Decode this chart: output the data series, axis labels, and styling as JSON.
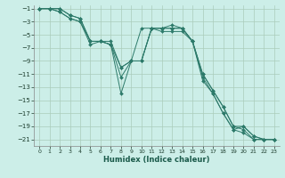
{
  "title": "",
  "xlabel": "Humidex (Indice chaleur)",
  "background_color": "#cceee8",
  "grid_color": "#aaccbb",
  "line_color": "#2d7a6a",
  "marker_color": "#2d7a6a",
  "xlim": [
    -0.5,
    23.5
  ],
  "ylim": [
    -22,
    -0.5
  ],
  "yticks": [
    -1,
    -3,
    -5,
    -7,
    -9,
    -11,
    -13,
    -15,
    -17,
    -19,
    -21
  ],
  "xticks": [
    0,
    1,
    2,
    3,
    4,
    5,
    6,
    7,
    8,
    9,
    10,
    11,
    12,
    13,
    14,
    15,
    16,
    17,
    18,
    19,
    20,
    21,
    22,
    23
  ],
  "series_x": [
    0,
    1,
    2,
    3,
    4,
    5,
    6,
    7,
    8,
    9,
    10,
    11,
    12,
    13,
    14,
    15,
    16,
    17,
    18,
    19,
    20,
    21,
    22,
    23
  ],
  "series": [
    [
      -1,
      -1,
      -1,
      -2,
      -2.5,
      -6,
      -6,
      -6.5,
      -14,
      -9,
      -4,
      -4,
      -4,
      -3.5,
      -4,
      -6,
      -12,
      -14,
      -17,
      -19.5,
      -20,
      -21,
      -21,
      -21
    ],
    [
      -1,
      -1,
      -1.5,
      -2.5,
      -3,
      -6.5,
      -6,
      -6.5,
      -11.5,
      -9,
      -9,
      -4,
      -4.5,
      -4.5,
      -4.5,
      -6,
      -11.5,
      -14,
      -17,
      -19.5,
      -19,
      -20.5,
      -21,
      -21
    ],
    [
      -1,
      -1,
      -1.5,
      -2.5,
      -3,
      -6,
      -6,
      -6.5,
      -10,
      -9,
      -9,
      -4,
      -4,
      -4,
      -4,
      -6,
      -11,
      -13.5,
      -16,
      -19,
      -19,
      -20.5,
      -21,
      -21
    ],
    [
      -1,
      -1,
      -1,
      -2,
      -2.5,
      -6,
      -6,
      -6,
      -10,
      -9,
      -9,
      -4,
      -4,
      -4,
      -4,
      -6,
      -11,
      -13.5,
      -16,
      -19,
      -19.5,
      -21,
      -21,
      -21
    ]
  ]
}
